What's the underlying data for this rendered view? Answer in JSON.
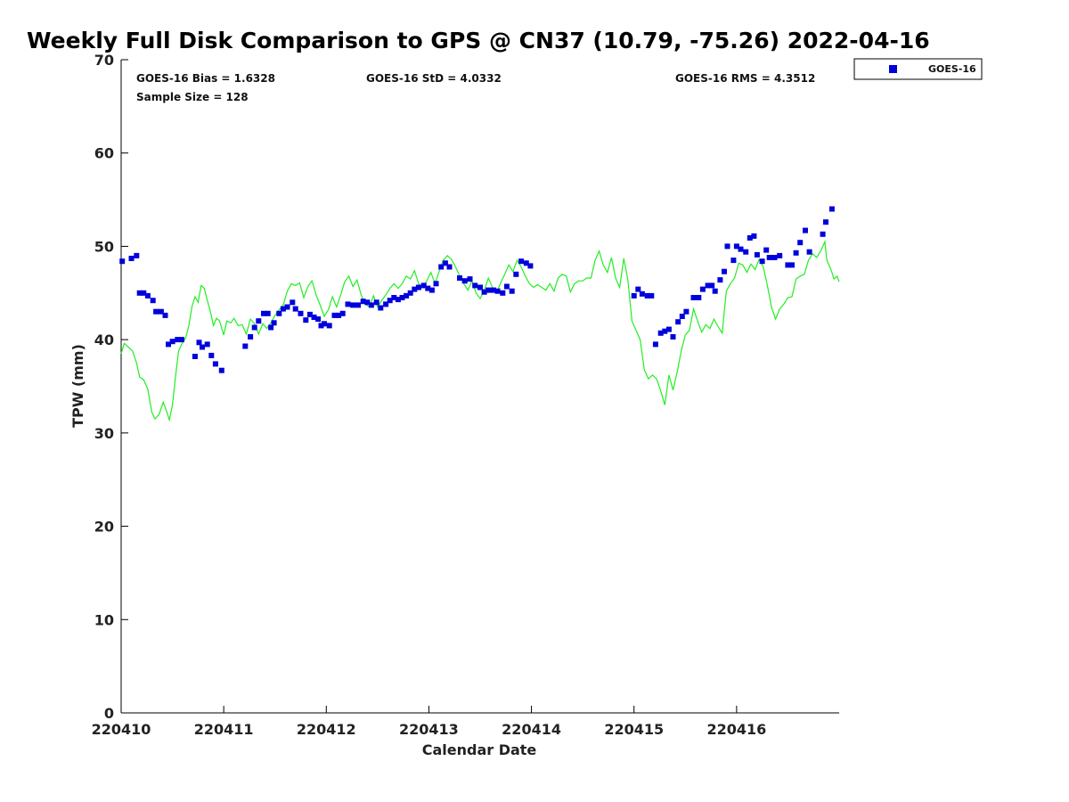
{
  "chart_data": {
    "type": "scatter",
    "title": "Weekly Full Disk Comparison to GPS @ CN37 (10.79, -75.26) 2022-04-16",
    "xlabel": "Calendar Date",
    "ylabel": "TPW (mm)",
    "xlim": [
      0,
      7
    ],
    "ylim": [
      0,
      70
    ],
    "x_ticks": [
      {
        "value": 0,
        "label": "220410"
      },
      {
        "value": 1,
        "label": "220411"
      },
      {
        "value": 2,
        "label": "220412"
      },
      {
        "value": 3,
        "label": "220413"
      },
      {
        "value": 4,
        "label": "220414"
      },
      {
        "value": 5,
        "label": "220415"
      },
      {
        "value": 6,
        "label": "220416"
      }
    ],
    "y_ticks": [
      0,
      10,
      20,
      30,
      40,
      50,
      60,
      70
    ],
    "stats": {
      "bias": "GOES-16 Bias = 1.6328",
      "std": "GOES-16 StD = 4.0332",
      "rms": "GOES-16 RMS = 4.3512",
      "sample": "Sample Size = 128"
    },
    "legend": {
      "position": "top-right, outside plot",
      "label": "GOES-16"
    },
    "colors": {
      "goes": "#0000dd",
      "gps": "#22ee22"
    },
    "series": [
      {
        "name": "GOES-16",
        "style": "square-markers",
        "points": [
          [
            0.01,
            48.4
          ],
          [
            0.1,
            48.7
          ],
          [
            0.15,
            49.0
          ],
          [
            0.18,
            45.0
          ],
          [
            0.22,
            45.0
          ],
          [
            0.26,
            44.7
          ],
          [
            0.31,
            44.2
          ],
          [
            0.34,
            43.0
          ],
          [
            0.39,
            43.0
          ],
          [
            0.43,
            42.6
          ],
          [
            0.46,
            39.5
          ],
          [
            0.5,
            39.8
          ],
          [
            0.55,
            40.0
          ],
          [
            0.59,
            40.0
          ],
          [
            0.72,
            38.2
          ],
          [
            0.76,
            39.7
          ],
          [
            0.79,
            39.2
          ],
          [
            0.84,
            39.5
          ],
          [
            0.88,
            38.3
          ],
          [
            0.92,
            37.4
          ],
          [
            0.98,
            36.7
          ],
          [
            1.21,
            39.3
          ],
          [
            1.26,
            40.3
          ],
          [
            1.3,
            41.3
          ],
          [
            1.34,
            42.0
          ],
          [
            1.39,
            42.8
          ],
          [
            1.43,
            42.8
          ],
          [
            1.46,
            41.3
          ],
          [
            1.49,
            41.8
          ],
          [
            1.54,
            42.8
          ],
          [
            1.58,
            43.3
          ],
          [
            1.62,
            43.5
          ],
          [
            1.67,
            44.0
          ],
          [
            1.7,
            43.3
          ],
          [
            1.75,
            42.8
          ],
          [
            1.8,
            42.1
          ],
          [
            1.84,
            42.7
          ],
          [
            1.88,
            42.4
          ],
          [
            1.92,
            42.2
          ],
          [
            1.95,
            41.5
          ],
          [
            1.98,
            41.7
          ],
          [
            2.03,
            41.5
          ],
          [
            2.08,
            42.6
          ],
          [
            2.12,
            42.6
          ],
          [
            2.16,
            42.8
          ],
          [
            2.21,
            43.8
          ],
          [
            2.26,
            43.7
          ],
          [
            2.31,
            43.7
          ],
          [
            2.36,
            44.1
          ],
          [
            2.4,
            44.0
          ],
          [
            2.44,
            43.7
          ],
          [
            2.49,
            44.0
          ],
          [
            2.53,
            43.4
          ],
          [
            2.58,
            43.8
          ],
          [
            2.62,
            44.2
          ],
          [
            2.66,
            44.5
          ],
          [
            2.7,
            44.3
          ],
          [
            2.74,
            44.5
          ],
          [
            2.78,
            44.7
          ],
          [
            2.82,
            45.0
          ],
          [
            2.86,
            45.4
          ],
          [
            2.9,
            45.6
          ],
          [
            2.95,
            45.8
          ],
          [
            2.99,
            45.5
          ],
          [
            3.03,
            45.3
          ],
          [
            3.07,
            46.0
          ],
          [
            3.12,
            47.8
          ],
          [
            3.16,
            48.2
          ],
          [
            3.2,
            47.8
          ],
          [
            3.3,
            46.6
          ],
          [
            3.35,
            46.3
          ],
          [
            3.4,
            46.5
          ],
          [
            3.45,
            45.8
          ],
          [
            3.5,
            45.6
          ],
          [
            3.54,
            45.1
          ],
          [
            3.58,
            45.3
          ],
          [
            3.63,
            45.3
          ],
          [
            3.67,
            45.2
          ],
          [
            3.72,
            45.0
          ],
          [
            3.76,
            45.7
          ],
          [
            3.81,
            45.2
          ],
          [
            3.85,
            47.0
          ],
          [
            3.9,
            48.4
          ],
          [
            3.95,
            48.2
          ],
          [
            3.99,
            47.9
          ],
          [
            5.0,
            44.7
          ],
          [
            5.04,
            45.4
          ],
          [
            5.08,
            44.9
          ],
          [
            5.13,
            44.7
          ],
          [
            5.17,
            44.7
          ],
          [
            5.21,
            39.5
          ],
          [
            5.26,
            40.7
          ],
          [
            5.3,
            40.9
          ],
          [
            5.34,
            41.1
          ],
          [
            5.38,
            40.3
          ],
          [
            5.43,
            41.9
          ],
          [
            5.47,
            42.5
          ],
          [
            5.51,
            43.0
          ],
          [
            5.58,
            44.5
          ],
          [
            5.63,
            44.5
          ],
          [
            5.67,
            45.4
          ],
          [
            5.72,
            45.8
          ],
          [
            5.76,
            45.8
          ],
          [
            5.79,
            45.2
          ],
          [
            5.84,
            46.4
          ],
          [
            5.88,
            47.3
          ],
          [
            5.91,
            50.0
          ],
          [
            5.97,
            48.5
          ],
          [
            6.0,
            50.0
          ],
          [
            6.04,
            49.7
          ],
          [
            6.09,
            49.4
          ],
          [
            6.13,
            50.9
          ],
          [
            6.17,
            51.1
          ],
          [
            6.2,
            49.1
          ],
          [
            6.25,
            48.4
          ],
          [
            6.29,
            49.6
          ],
          [
            6.32,
            48.8
          ],
          [
            6.37,
            48.8
          ],
          [
            6.42,
            49.0
          ],
          [
            6.5,
            48.0
          ],
          [
            6.54,
            48.0
          ],
          [
            6.58,
            49.3
          ],
          [
            6.62,
            50.4
          ],
          [
            6.67,
            51.7
          ],
          [
            6.71,
            49.4
          ],
          [
            6.84,
            51.3
          ],
          [
            6.87,
            52.6
          ],
          [
            6.93,
            54.0
          ]
        ]
      },
      {
        "name": "GPS",
        "style": "line",
        "points": [
          [
            0,
            38.5
          ],
          [
            0.03,
            39.6
          ],
          [
            0.07,
            39.2
          ],
          [
            0.11,
            38.8
          ],
          [
            0.15,
            37.5
          ],
          [
            0.18,
            36.0
          ],
          [
            0.22,
            35.7
          ],
          [
            0.26,
            34.7
          ],
          [
            0.3,
            32.2
          ],
          [
            0.33,
            31.5
          ],
          [
            0.37,
            32.0
          ],
          [
            0.41,
            33.3
          ],
          [
            0.44,
            32.4
          ],
          [
            0.47,
            31.4
          ],
          [
            0.5,
            33.0
          ],
          [
            0.53,
            36.0
          ],
          [
            0.56,
            38.8
          ],
          [
            0.59,
            39.5
          ],
          [
            0.63,
            40.2
          ],
          [
            0.66,
            41.5
          ],
          [
            0.69,
            43.5
          ],
          [
            0.72,
            44.6
          ],
          [
            0.75,
            44.0
          ],
          [
            0.78,
            45.8
          ],
          [
            0.81,
            45.5
          ],
          [
            0.84,
            44.2
          ],
          [
            0.87,
            43.0
          ],
          [
            0.9,
            41.5
          ],
          [
            0.93,
            42.3
          ],
          [
            0.96,
            42.0
          ],
          [
            1.0,
            40.5
          ],
          [
            1.03,
            42.0
          ],
          [
            1.07,
            41.8
          ],
          [
            1.1,
            42.3
          ],
          [
            1.14,
            41.5
          ],
          [
            1.18,
            41.6
          ],
          [
            1.22,
            40.6
          ],
          [
            1.26,
            42.2
          ],
          [
            1.3,
            41.7
          ],
          [
            1.34,
            40.6
          ],
          [
            1.38,
            41.7
          ],
          [
            1.42,
            41.2
          ],
          [
            1.46,
            41.8
          ],
          [
            1.5,
            42.6
          ],
          [
            1.54,
            43.2
          ],
          [
            1.58,
            43.7
          ],
          [
            1.62,
            45.2
          ],
          [
            1.66,
            46.0
          ],
          [
            1.7,
            45.8
          ],
          [
            1.74,
            46.1
          ],
          [
            1.78,
            44.5
          ],
          [
            1.82,
            45.7
          ],
          [
            1.86,
            46.3
          ],
          [
            1.9,
            44.8
          ],
          [
            1.94,
            43.7
          ],
          [
            1.98,
            42.5
          ],
          [
            2.02,
            43.2
          ],
          [
            2.06,
            44.6
          ],
          [
            2.1,
            43.5
          ],
          [
            2.14,
            44.8
          ],
          [
            2.18,
            46.2
          ],
          [
            2.22,
            46.8
          ],
          [
            2.26,
            45.7
          ],
          [
            2.3,
            46.4
          ],
          [
            2.34,
            44.8
          ],
          [
            2.38,
            43.8
          ],
          [
            2.42,
            43.5
          ],
          [
            2.46,
            44.7
          ],
          [
            2.5,
            43.5
          ],
          [
            2.54,
            44.2
          ],
          [
            2.58,
            44.8
          ],
          [
            2.62,
            45.5
          ],
          [
            2.66,
            46.0
          ],
          [
            2.7,
            45.5
          ],
          [
            2.74,
            46.0
          ],
          [
            2.78,
            46.8
          ],
          [
            2.82,
            46.5
          ],
          [
            2.86,
            47.4
          ],
          [
            2.9,
            46.0
          ],
          [
            2.94,
            45.6
          ],
          [
            2.98,
            46.3
          ],
          [
            3.02,
            47.2
          ],
          [
            3.06,
            46.0
          ],
          [
            3.1,
            47.3
          ],
          [
            3.14,
            48.5
          ],
          [
            3.18,
            49.0
          ],
          [
            3.22,
            48.6
          ],
          [
            3.26,
            47.8
          ],
          [
            3.3,
            46.8
          ],
          [
            3.34,
            46.0
          ],
          [
            3.38,
            45.3
          ],
          [
            3.42,
            46.3
          ],
          [
            3.46,
            45.0
          ],
          [
            3.5,
            44.4
          ],
          [
            3.54,
            45.3
          ],
          [
            3.58,
            46.6
          ],
          [
            3.62,
            45.6
          ],
          [
            3.66,
            45.0
          ],
          [
            3.7,
            46.1
          ],
          [
            3.74,
            47.0
          ],
          [
            3.78,
            48.0
          ],
          [
            3.82,
            47.3
          ],
          [
            3.86,
            48.5
          ],
          [
            3.9,
            47.8
          ],
          [
            3.94,
            46.8
          ],
          [
            3.98,
            46.0
          ],
          [
            4.02,
            45.6
          ],
          [
            4.06,
            45.9
          ],
          [
            4.1,
            45.6
          ],
          [
            4.14,
            45.3
          ],
          [
            4.18,
            46.0
          ],
          [
            4.22,
            45.2
          ],
          [
            4.26,
            46.6
          ],
          [
            4.3,
            47.0
          ],
          [
            4.34,
            46.8
          ],
          [
            4.38,
            45.1
          ],
          [
            4.42,
            46.0
          ],
          [
            4.46,
            46.3
          ],
          [
            4.5,
            46.3
          ],
          [
            4.54,
            46.6
          ],
          [
            4.58,
            46.6
          ],
          [
            4.62,
            48.5
          ],
          [
            4.66,
            49.5
          ],
          [
            4.7,
            48.0
          ],
          [
            4.74,
            47.2
          ],
          [
            4.78,
            48.8
          ],
          [
            4.82,
            46.6
          ],
          [
            4.86,
            45.6
          ],
          [
            4.9,
            48.7
          ],
          [
            4.94,
            46.4
          ],
          [
            4.98,
            42.0
          ],
          [
            5.02,
            41.0
          ],
          [
            5.06,
            40.0
          ],
          [
            5.1,
            36.8
          ],
          [
            5.14,
            35.8
          ],
          [
            5.18,
            36.2
          ],
          [
            5.22,
            35.8
          ],
          [
            5.26,
            34.5
          ],
          [
            5.3,
            33.0
          ],
          [
            5.34,
            36.2
          ],
          [
            5.38,
            34.6
          ],
          [
            5.42,
            36.5
          ],
          [
            5.46,
            38.8
          ],
          [
            5.5,
            40.5
          ],
          [
            5.54,
            41.0
          ],
          [
            5.58,
            43.3
          ],
          [
            5.62,
            42.0
          ],
          [
            5.66,
            40.8
          ],
          [
            5.7,
            41.6
          ],
          [
            5.74,
            41.2
          ],
          [
            5.78,
            42.2
          ],
          [
            5.82,
            41.4
          ],
          [
            5.86,
            40.7
          ],
          [
            5.9,
            45.2
          ],
          [
            5.94,
            46.0
          ],
          [
            5.98,
            46.6
          ],
          [
            6.02,
            48.2
          ],
          [
            6.06,
            48.0
          ],
          [
            6.1,
            47.2
          ],
          [
            6.14,
            48.1
          ],
          [
            6.18,
            47.5
          ],
          [
            6.22,
            48.6
          ],
          [
            6.26,
            47.8
          ],
          [
            6.3,
            45.8
          ],
          [
            6.34,
            43.5
          ],
          [
            6.38,
            42.2
          ],
          [
            6.42,
            43.3
          ],
          [
            6.46,
            43.8
          ],
          [
            6.5,
            44.5
          ],
          [
            6.54,
            44.6
          ],
          [
            6.58,
            46.5
          ],
          [
            6.62,
            46.8
          ],
          [
            6.66,
            47.0
          ],
          [
            6.7,
            48.5
          ],
          [
            6.74,
            49.2
          ],
          [
            6.78,
            48.8
          ],
          [
            6.82,
            49.5
          ],
          [
            6.86,
            50.5
          ],
          [
            6.88,
            48.5
          ],
          [
            6.92,
            47.5
          ],
          [
            6.95,
            46.5
          ],
          [
            6.98,
            46.8
          ],
          [
            7.0,
            46.2
          ]
        ]
      }
    ]
  }
}
